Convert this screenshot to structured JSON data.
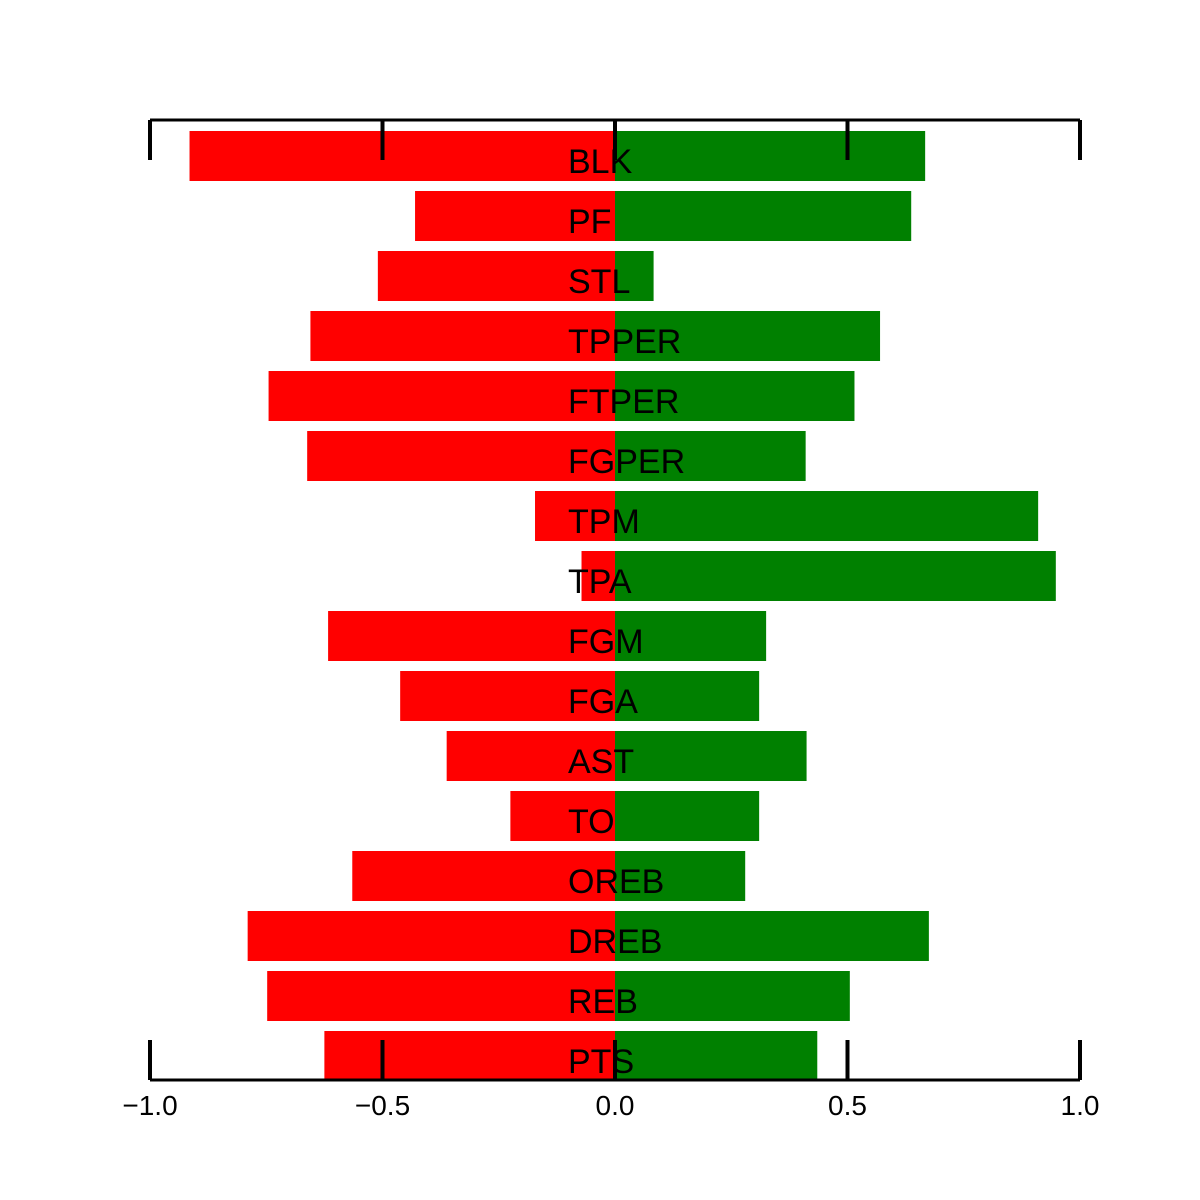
{
  "chart_data": {
    "type": "bar",
    "orientation": "horizontal",
    "categories": [
      "BLK",
      "PF",
      "STL",
      "TPPER",
      "FTPER",
      "FGPER",
      "TPM",
      "TPA",
      "FGM",
      "FGA",
      "AST",
      "TO",
      "OREB",
      "DREB",
      "REB",
      "PTS"
    ],
    "series": [
      {
        "values": [
          -0.915,
          -0.43,
          -0.51,
          -0.655,
          -0.745,
          -0.662,
          -0.172,
          -0.072,
          -0.617,
          -0.462,
          -0.362,
          -0.225,
          -0.565,
          -0.79,
          -0.748,
          -0.625
        ],
        "color": "#ff0000"
      },
      {
        "values": [
          0.667,
          0.637,
          0.083,
          0.57,
          0.515,
          0.41,
          0.91,
          0.948,
          0.325,
          0.31,
          0.412,
          0.31,
          0.28,
          0.675,
          0.505,
          0.435
        ],
        "color": "#008000"
      }
    ],
    "xlim": [
      -1.0,
      1.0
    ],
    "xticks": [
      -1.0,
      -0.5,
      0.0,
      0.5,
      1.0
    ],
    "tick_labels": [
      "−1.0",
      "−0.5",
      "0.0",
      "0.5",
      "1.0"
    ],
    "title": "",
    "xlabel": "",
    "ylabel": "",
    "grid": false,
    "legend": "none"
  }
}
